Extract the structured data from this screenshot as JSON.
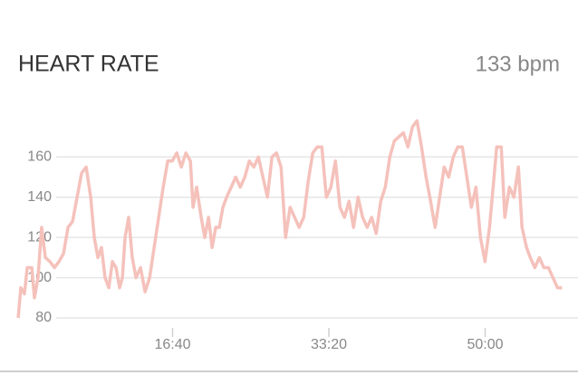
{
  "chart_data": {
    "type": "line",
    "title": "HEART RATE",
    "current": "133 bpm",
    "x": [
      12,
      29,
      52,
      70,
      99,
      116,
      139,
      162,
      186,
      215,
      244,
      273,
      302,
      331,
      360,
      389,
      418,
      447,
      476,
      499,
      522,
      545,
      568,
      592,
      615,
      638,
      661,
      679,
      696,
      719,
      742,
      766,
      795,
      824,
      853,
      882,
      911,
      940,
      969,
      998,
      1027,
      1056,
      1085,
      1114,
      1131,
      1154,
      1183,
      1206,
      1230,
      1253,
      1276,
      1299,
      1322,
      1346,
      1375,
      1404,
      1433,
      1462,
      1491,
      1520,
      1549,
      1578,
      1607,
      1636,
      1665,
      1694,
      1723,
      1752,
      1781,
      1810,
      1839,
      1868,
      1897,
      1926,
      1955,
      1984,
      2013,
      2042,
      2071,
      2100,
      2129,
      2158,
      2187,
      2216,
      2245,
      2274,
      2303,
      2332,
      2361,
      2390,
      2419,
      2448,
      2477,
      2506,
      2535,
      2564,
      2593,
      2622,
      2651,
      2680,
      2709,
      2738,
      2767,
      2796,
      2825,
      2854,
      2883,
      2912,
      2941,
      2970,
      2999,
      3028,
      3057,
      3074,
      3103,
      3126,
      3155,
      3184,
      3213,
      3236,
      3265,
      3289,
      3318,
      3347,
      3376,
      3405,
      3434,
      3463,
      3492
    ],
    "series": [
      {
        "name": "heart rate",
        "color": "#f5c1bb",
        "values": [
          80,
          95,
          92,
          105,
          105,
          90,
          100,
          125,
          110,
          108,
          105,
          108,
          112,
          125,
          128,
          140,
          152,
          155,
          140,
          120,
          110,
          115,
          100,
          95,
          108,
          105,
          95,
          100,
          120,
          130,
          110,
          100,
          105,
          93,
          100,
          115,
          130,
          145,
          158,
          158,
          162,
          155,
          162,
          158,
          135,
          145,
          130,
          120,
          130,
          115,
          125,
          125,
          135,
          140,
          145,
          150,
          145,
          150,
          158,
          155,
          160,
          150,
          140,
          160,
          162,
          155,
          120,
          135,
          130,
          125,
          130,
          148,
          162,
          165,
          165,
          140,
          145,
          158,
          135,
          130,
          138,
          125,
          140,
          130,
          125,
          130,
          122,
          138,
          145,
          160,
          168,
          170,
          172,
          165,
          175,
          178,
          165,
          150,
          138,
          125,
          140,
          155,
          150,
          160,
          165,
          165,
          150,
          135,
          145,
          120,
          108,
          125,
          150,
          165,
          165,
          130,
          145,
          140,
          155,
          125,
          115,
          110,
          105,
          110,
          105,
          105,
          100,
          95,
          95
        ]
      }
    ],
    "xlim": [
      0,
      3500
    ],
    "xticks": [
      {
        "value": 1000,
        "label": "16:40"
      },
      {
        "value": 2000,
        "label": "33:20"
      },
      {
        "value": 3000,
        "label": "50:00"
      }
    ],
    "ylim": [
      72.8,
      184
    ],
    "yticks": [
      80,
      100,
      120,
      140,
      160
    ],
    "grid": true
  }
}
